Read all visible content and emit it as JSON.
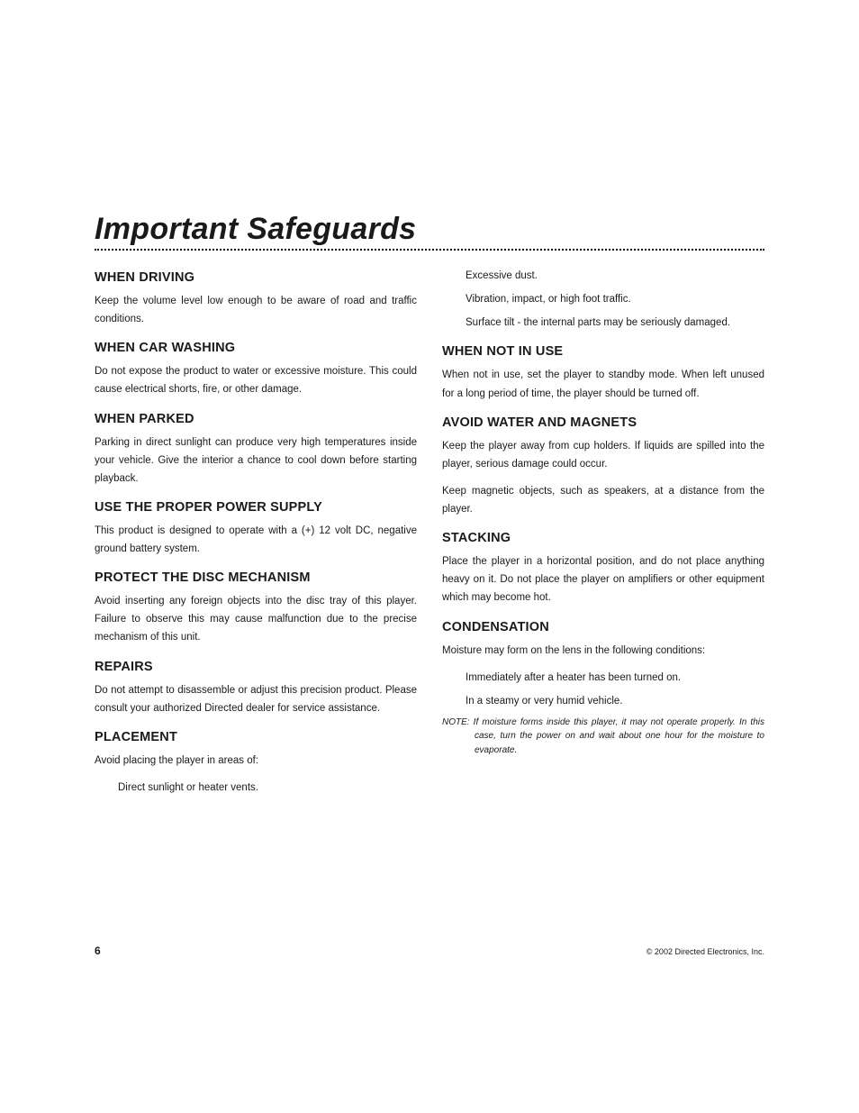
{
  "title": "Important Safeguards",
  "left_column": [
    {
      "heading": "WHEN DRIVING",
      "paragraphs": [
        "Keep the volume level low enough to be aware of road and traffic conditions."
      ]
    },
    {
      "heading": "WHEN CAR WASHING",
      "paragraphs": [
        "Do not expose the product to water or excessive moisture. This could cause electrical shorts, fire, or other damage."
      ]
    },
    {
      "heading": "WHEN PARKED",
      "paragraphs": [
        "Parking in direct sunlight can produce very high temperatures inside your vehicle. Give the interior a chance to cool down before starting playback."
      ]
    },
    {
      "heading": "USE THE PROPER POWER SUPPLY",
      "paragraphs": [
        "This product is designed to operate with a (+) 12 volt DC, negative ground battery system."
      ]
    },
    {
      "heading": "PROTECT THE DISC MECHANISM",
      "paragraphs": [
        "Avoid inserting any foreign objects into the disc tray of this player. Failure to observe this may cause malfunction due to the precise mechanism of this unit."
      ]
    },
    {
      "heading": "REPAIRS",
      "paragraphs": [
        "Do not attempt to disassemble or adjust this precision product. Please consult your authorized Directed dealer for service assistance."
      ]
    },
    {
      "heading": "PLACEMENT",
      "paragraphs": [
        "Avoid placing the player in areas of:"
      ],
      "indented": [
        "Direct sunlight or heater vents."
      ]
    }
  ],
  "right_column": {
    "lead_indented": [
      "Excessive dust.",
      "Vibration, impact, or high foot traffic.",
      "Surface tilt - the internal parts may be seriously damaged."
    ],
    "sections": [
      {
        "heading": "WHEN NOT IN USE",
        "paragraphs": [
          "When not in use, set the player to standby mode. When left unused for a long period of time, the player should be turned off."
        ]
      },
      {
        "heading": "AVOID WATER AND MAGNETS",
        "paragraphs": [
          "Keep the player away from cup holders. If liquids are spilled into the player, serious damage could occur.",
          "Keep magnetic objects, such as speakers, at a distance from the player."
        ]
      },
      {
        "heading": "STACKING",
        "paragraphs": [
          "Place the player in a horizontal position, and do not place anything heavy on it. Do not place the player on amplifiers or other equipment which may become hot."
        ]
      },
      {
        "heading": "CONDENSATION",
        "paragraphs": [
          "Moisture may form on the lens in the following conditions:"
        ],
        "indented": [
          "Immediately after a heater has been turned on.",
          "In a steamy or very humid vehicle."
        ],
        "note": "NOTE: If moisture forms inside this player, it may not operate properly. In this case, turn the power on and wait about one hour for the moisture to evaporate."
      }
    ]
  },
  "footer": {
    "page_number": "6",
    "copyright": "© 2002 Directed Electronics, Inc."
  }
}
